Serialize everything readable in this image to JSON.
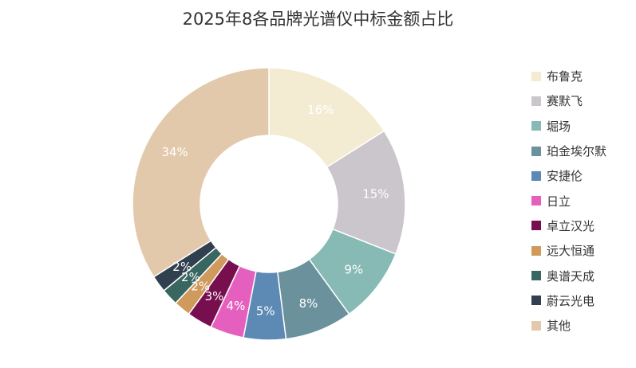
{
  "chart_data": {
    "type": "pie",
    "donut": true,
    "title": "2025年8各品牌光谱仪中标金额占比",
    "legend_position": "right",
    "slices": [
      {
        "name": "布鲁克",
        "value": 16,
        "label": "16%",
        "color": "#f4ecd2"
      },
      {
        "name": "赛默飞",
        "value": 15,
        "label": "15%",
        "color": "#cbc6cc"
      },
      {
        "name": "堀场",
        "value": 9,
        "label": "9%",
        "color": "#87bab4"
      },
      {
        "name": "珀金埃尔默",
        "value": 8,
        "label": "8%",
        "color": "#6b919c"
      },
      {
        "name": "安捷伦",
        "value": 5,
        "label": "5%",
        "color": "#5d89b5"
      },
      {
        "name": "日立",
        "value": 4,
        "label": "4%",
        "color": "#e560be"
      },
      {
        "name": "卓立汉光",
        "value": 3,
        "label": "3%",
        "color": "#770f4e"
      },
      {
        "name": "远大恒通",
        "value": 2,
        "label": "2%",
        "color": "#cf9a5c"
      },
      {
        "name": "奥谱天成",
        "value": 2,
        "label": "2%",
        "color": "#386660"
      },
      {
        "name": "蔚云光电",
        "value": 2,
        "label": "2%",
        "color": "#31404e"
      },
      {
        "name": "其他",
        "value": 34,
        "label": "34%",
        "color": "#e3c9ab"
      }
    ]
  }
}
